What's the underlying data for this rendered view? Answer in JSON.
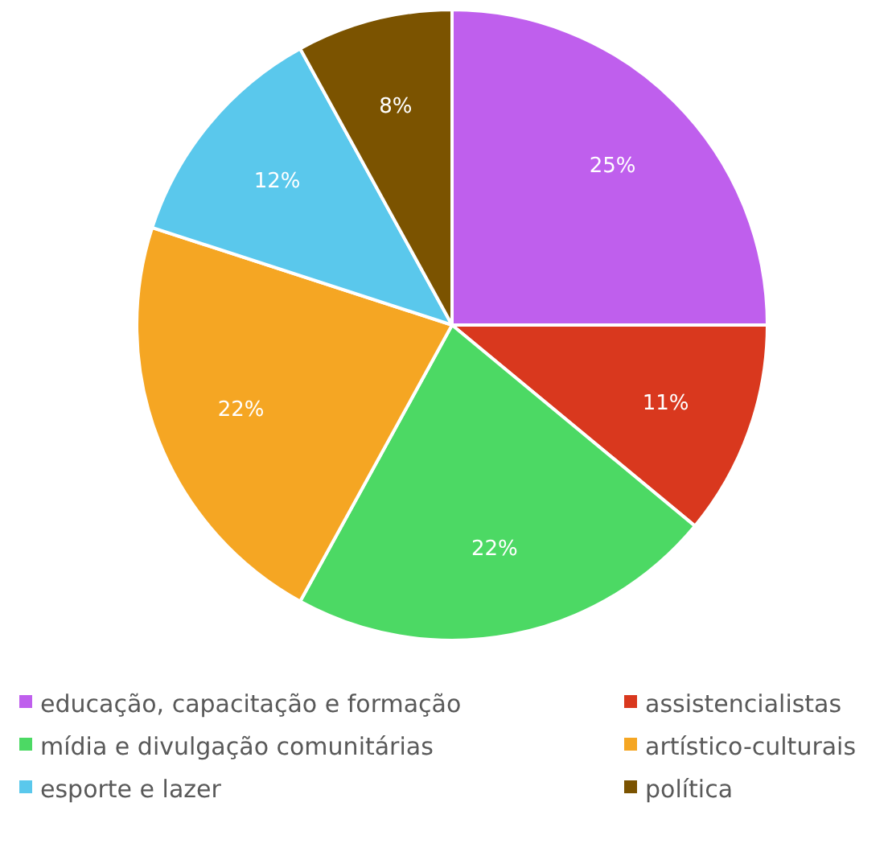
{
  "chart_data": {
    "type": "pie",
    "categories": [
      "educação, capacitação e formação",
      "assistencialistas",
      "mídia e divulgação comunitárias",
      "artístico-culturais",
      "esporte e lazer",
      "política"
    ],
    "values": [
      25,
      11,
      22,
      22,
      12,
      8
    ],
    "colors": [
      "#bf5fed",
      "#d9381e",
      "#4cd964",
      "#f5a623",
      "#5ac8ec",
      "#7b5300"
    ],
    "value_labels": [
      "25%",
      "11%",
      "22%",
      "22%",
      "12%",
      "8%"
    ],
    "legend": "bottom"
  }
}
